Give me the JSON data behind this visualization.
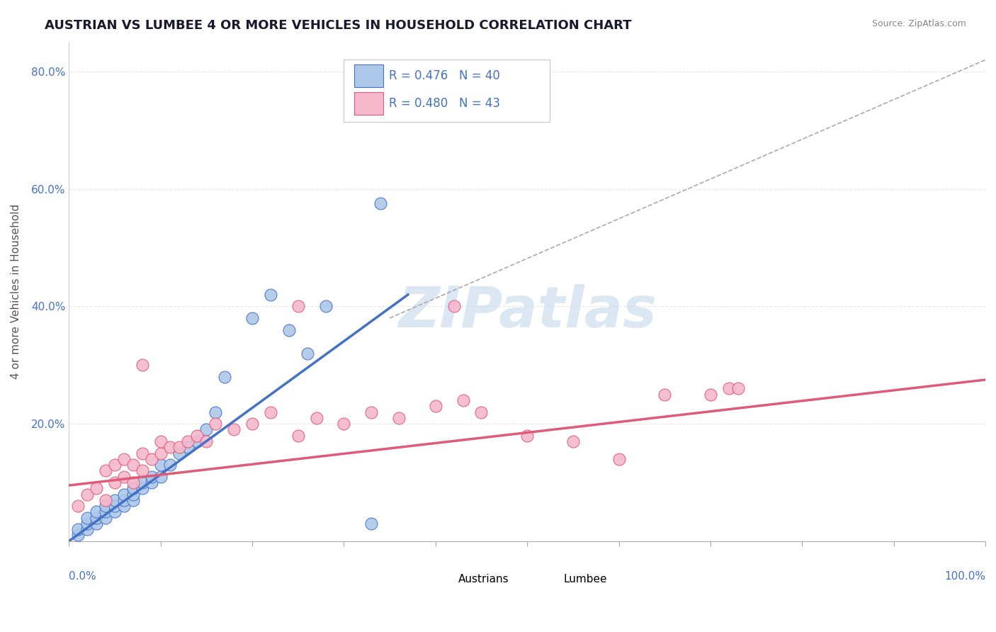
{
  "title": "AUSTRIAN VS LUMBEE 4 OR MORE VEHICLES IN HOUSEHOLD CORRELATION CHART",
  "source": "Source: ZipAtlas.com",
  "ylabel": "4 or more Vehicles in Household",
  "xlim": [
    0.0,
    1.0
  ],
  "ylim": [
    0.0,
    0.85
  ],
  "yticks": [
    0.0,
    0.2,
    0.4,
    0.6,
    0.8
  ],
  "ytick_labels": [
    "",
    "20.0%",
    "40.0%",
    "60.0%",
    "80.0%"
  ],
  "austrian_color": "#adc8e8",
  "lumbee_color": "#f5b8cb",
  "austrian_line_color": "#4472c4",
  "lumbee_line_color": "#e05a7a",
  "dashed_line_color": "#aaaaaa",
  "watermark_text": "ZIPatlas",
  "watermark_color": "#ccddef",
  "legend_R_austrian": "R = 0.476",
  "legend_N_austrian": "N = 40",
  "legend_R_lumbee": "R = 0.480",
  "legend_N_lumbee": "N = 43",
  "aus_line_x0": 0.0,
  "aus_line_y0": 0.0,
  "aus_line_x1": 0.37,
  "aus_line_y1": 0.42,
  "lum_line_x0": 0.0,
  "lum_line_y0": 0.095,
  "lum_line_x1": 1.0,
  "lum_line_y1": 0.275,
  "dash_line_x0": 0.35,
  "dash_line_y0": 0.38,
  "dash_line_x1": 1.0,
  "dash_line_y1": 0.82,
  "austrian_scatter_x": [
    0.01,
    0.01,
    0.02,
    0.02,
    0.02,
    0.03,
    0.03,
    0.03,
    0.04,
    0.04,
    0.04,
    0.05,
    0.05,
    0.05,
    0.06,
    0.06,
    0.06,
    0.07,
    0.07,
    0.07,
    0.08,
    0.08,
    0.09,
    0.09,
    0.1,
    0.1,
    0.11,
    0.12,
    0.13,
    0.14,
    0.15,
    0.16,
    0.17,
    0.2,
    0.22,
    0.24,
    0.26,
    0.28,
    0.33,
    0.34
  ],
  "austrian_scatter_y": [
    0.01,
    0.02,
    0.02,
    0.03,
    0.04,
    0.03,
    0.04,
    0.05,
    0.04,
    0.05,
    0.06,
    0.05,
    0.06,
    0.07,
    0.06,
    0.07,
    0.08,
    0.07,
    0.08,
    0.09,
    0.09,
    0.1,
    0.1,
    0.11,
    0.11,
    0.13,
    0.13,
    0.15,
    0.16,
    0.17,
    0.19,
    0.22,
    0.28,
    0.38,
    0.42,
    0.36,
    0.32,
    0.4,
    0.03,
    0.575
  ],
  "lumbee_scatter_x": [
    0.01,
    0.02,
    0.03,
    0.04,
    0.04,
    0.05,
    0.05,
    0.06,
    0.06,
    0.07,
    0.07,
    0.08,
    0.08,
    0.09,
    0.1,
    0.1,
    0.11,
    0.12,
    0.13,
    0.14,
    0.15,
    0.16,
    0.18,
    0.2,
    0.22,
    0.25,
    0.27,
    0.3,
    0.33,
    0.36,
    0.4,
    0.43,
    0.45,
    0.5,
    0.55,
    0.6,
    0.65,
    0.7,
    0.72,
    0.73,
    0.08,
    0.25,
    0.42
  ],
  "lumbee_scatter_y": [
    0.06,
    0.08,
    0.09,
    0.07,
    0.12,
    0.1,
    0.13,
    0.11,
    0.14,
    0.1,
    0.13,
    0.12,
    0.15,
    0.14,
    0.15,
    0.17,
    0.16,
    0.16,
    0.17,
    0.18,
    0.17,
    0.2,
    0.19,
    0.2,
    0.22,
    0.18,
    0.21,
    0.2,
    0.22,
    0.21,
    0.23,
    0.24,
    0.22,
    0.18,
    0.17,
    0.14,
    0.25,
    0.25,
    0.26,
    0.26,
    0.3,
    0.4,
    0.4
  ],
  "background_color": "#ffffff",
  "grid_color": "#e8e8e8"
}
